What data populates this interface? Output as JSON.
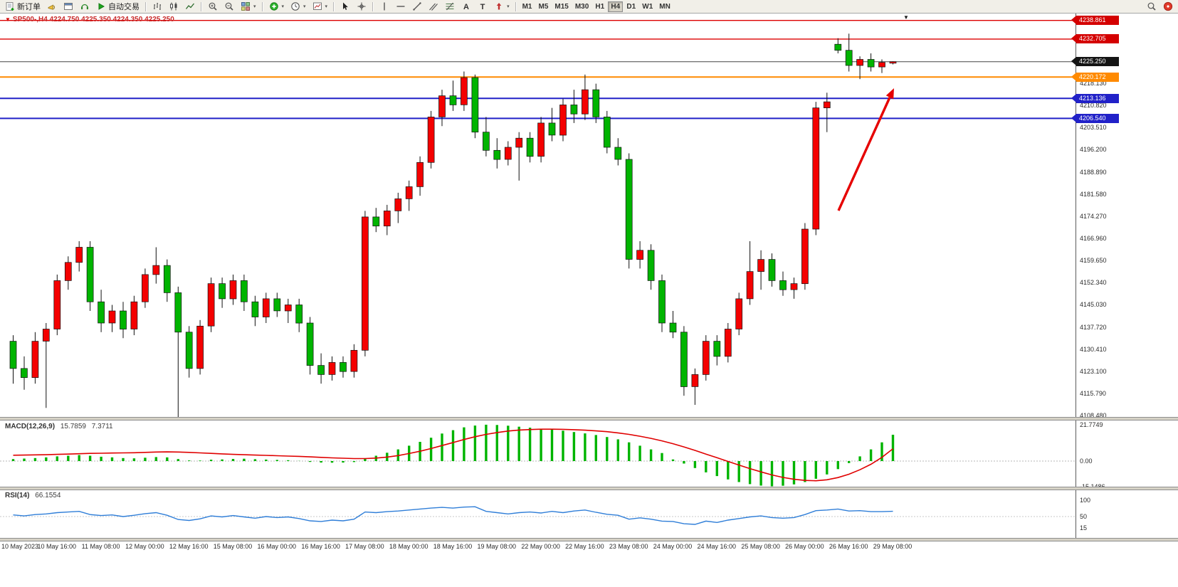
{
  "toolbar": {
    "new_order": "新订单",
    "autotrading": "自动交易",
    "timeframes": [
      "M1",
      "M5",
      "M15",
      "M30",
      "H1",
      "H4",
      "D1",
      "W1",
      "MN"
    ],
    "active_timeframe": "H4"
  },
  "chart": {
    "title": "SP500-,H4  4224.750 4225.350 4224.350 4225.250",
    "symbol": "SP500-",
    "timeframe": "H4",
    "open": "4224.750",
    "high": "4225.350",
    "low": "4224.350",
    "close": "4225.250"
  },
  "price_lines": [
    {
      "text": "4238.861",
      "price": 4238.861,
      "color": "#dd0000",
      "label_bg": "#d40000",
      "width": 1.4
    },
    {
      "text": "4232.705",
      "price": 4232.705,
      "color": "#dd0000",
      "label_bg": "#d40000",
      "width": 1.4
    },
    {
      "text": "4225.250",
      "price": 4225.25,
      "color": "#454545",
      "label_bg": "#141414",
      "width": 1
    },
    {
      "text": "4220.172",
      "price": 4220.172,
      "color": "#ff8a00",
      "label_bg": "#ff8a00",
      "width": 2
    },
    {
      "text": "4213.136",
      "price": 4213.136,
      "color": "#2121c8",
      "label_bg": "#2121c8",
      "width": 2
    },
    {
      "text": "4206.540",
      "price": 4206.54,
      "color": "#2121c8",
      "label_bg": "#2121c8",
      "width": 2
    }
  ],
  "price_axis_ticks": [
    "4218.130",
    "4210.820",
    "4203.510",
    "4196.200",
    "4188.890",
    "4181.580",
    "4174.270",
    "4166.960",
    "4159.650",
    "4152.340",
    "4145.030",
    "4137.720",
    "4130.410",
    "4123.100",
    "4115.790",
    "4108.480"
  ],
  "macd": {
    "label": "MACD(12,26,9)",
    "main_value": "15.7859",
    "signal_value": "7.3711",
    "scale_max": "21.7749",
    "scale_zero": "0.00",
    "scale_min": "-15.1486"
  },
  "rsi": {
    "label": "RSI(14)",
    "value": "66.1554",
    "scale": [
      "100",
      "50",
      "15"
    ]
  },
  "time_axis": [
    "10 May 2023",
    "10 May 16:00",
    "11 May 08:00",
    "12 May 00:00",
    "12 May 16:00",
    "15 May 08:00",
    "16 May 00:00",
    "16 May 16:00",
    "17 May 08:00",
    "18 May 00:00",
    "18 May 16:00",
    "19 May 08:00",
    "22 May 00:00",
    "22 May 16:00",
    "23 May 08:00",
    "24 May 00:00",
    "24 May 16:00",
    "25 May 08:00",
    "26 May 00:00",
    "26 May 16:00",
    "29 May 08:00"
  ],
  "chart_data": {
    "type": "candlestick",
    "symbol": "SP500-",
    "timeframe": "H4",
    "bull_color": "#f40000",
    "bear_color": "#00b400",
    "note": "red candles = bullish, green candles = bearish (CN convention); OHLC per bar",
    "candles_ohlc": [
      [
        4133,
        4135,
        4119,
        4124
      ],
      [
        4124,
        4128,
        4117,
        4121
      ],
      [
        4121,
        4136,
        4119,
        4133
      ],
      [
        4133,
        4139,
        4111,
        4137
      ],
      [
        4137,
        4155,
        4135,
        4153
      ],
      [
        4153,
        4161,
        4150,
        4159
      ],
      [
        4159,
        4166,
        4156,
        4164
      ],
      [
        4164,
        4166,
        4143,
        4146
      ],
      [
        4146,
        4150,
        4136,
        4139
      ],
      [
        4139,
        4145,
        4136,
        4143
      ],
      [
        4143,
        4146,
        4134,
        4137
      ],
      [
        4137,
        4148,
        4135,
        4146
      ],
      [
        4146,
        4157,
        4144,
        4155
      ],
      [
        4155,
        4164,
        4152,
        4158
      ],
      [
        4158,
        4160,
        4146,
        4149
      ],
      [
        4149,
        4151,
        4108,
        4136
      ],
      [
        4136,
        4138,
        4121,
        4124
      ],
      [
        4124,
        4140,
        4122,
        4138
      ],
      [
        4138,
        4154,
        4136,
        4152
      ],
      [
        4152,
        4154,
        4144,
        4147
      ],
      [
        4147,
        4155,
        4145,
        4153
      ],
      [
        4153,
        4155,
        4143,
        4146
      ],
      [
        4146,
        4148,
        4138,
        4141
      ],
      [
        4141,
        4149,
        4139,
        4147
      ],
      [
        4147,
        4149,
        4141,
        4143
      ],
      [
        4143,
        4147,
        4139,
        4145
      ],
      [
        4145,
        4147,
        4136,
        4139
      ],
      [
        4139,
        4141,
        4122,
        4125
      ],
      [
        4125,
        4129,
        4119,
        4122
      ],
      [
        4122,
        4128,
        4120,
        4126
      ],
      [
        4126,
        4128,
        4121,
        4123
      ],
      [
        4123,
        4132,
        4121,
        4130
      ],
      [
        4130,
        4176,
        4128,
        4174
      ],
      [
        4174,
        4177,
        4169,
        4171
      ],
      [
        4171,
        4178,
        4168,
        4176
      ],
      [
        4176,
        4182,
        4172,
        4180
      ],
      [
        4180,
        4186,
        4176,
        4184
      ],
      [
        4184,
        4194,
        4181,
        4192
      ],
      [
        4192,
        4209,
        4190,
        4207
      ],
      [
        4207,
        4216,
        4204,
        4214
      ],
      [
        4214,
        4219,
        4209,
        4211
      ],
      [
        4211,
        4222,
        4209,
        4220
      ],
      [
        4220,
        4221,
        4200,
        4202
      ],
      [
        4202,
        4207,
        4194,
        4196
      ],
      [
        4196,
        4200,
        4190,
        4193
      ],
      [
        4193,
        4199,
        4191,
        4197
      ],
      [
        4197,
        4202,
        4186,
        4200
      ],
      [
        4200,
        4202,
        4192,
        4194
      ],
      [
        4194,
        4207,
        4192,
        4205
      ],
      [
        4205,
        4210,
        4199,
        4201
      ],
      [
        4201,
        4213,
        4199,
        4211
      ],
      [
        4211,
        4216,
        4205,
        4208
      ],
      [
        4208,
        4221,
        4206,
        4216
      ],
      [
        4216,
        4218,
        4205,
        4207
      ],
      [
        4207,
        4209,
        4195,
        4197
      ],
      [
        4197,
        4200,
        4191,
        4193
      ],
      [
        4193,
        4195,
        4157,
        4160
      ],
      [
        4160,
        4166,
        4157,
        4163
      ],
      [
        4163,
        4165,
        4150,
        4153
      ],
      [
        4153,
        4155,
        4136,
        4139
      ],
      [
        4139,
        4143,
        4134,
        4136
      ],
      [
        4136,
        4138,
        4115,
        4118
      ],
      [
        4118,
        4124,
        4112,
        4122
      ],
      [
        4122,
        4135,
        4120,
        4133
      ],
      [
        4133,
        4135,
        4125,
        4128
      ],
      [
        4128,
        4139,
        4126,
        4137
      ],
      [
        4137,
        4149,
        4135,
        4147
      ],
      [
        4147,
        4166,
        4145,
        4156
      ],
      [
        4156,
        4163,
        4150,
        4160
      ],
      [
        4160,
        4162,
        4151,
        4153
      ],
      [
        4153,
        4156,
        4148,
        4150
      ],
      [
        4150,
        4154,
        4147,
        4152
      ],
      [
        4152,
        4172,
        4150,
        4170
      ],
      [
        4170,
        4212,
        4168,
        4210
      ],
      [
        4210,
        4215,
        4202,
        4212
      ],
      [
        4231,
        4233,
        4228,
        4229
      ],
      [
        4229,
        4234.5,
        4222,
        4224
      ],
      [
        4224,
        4227,
        4219.5,
        4226
      ],
      [
        4226,
        4228,
        4222,
        4223.5
      ],
      [
        4223.5,
        4226,
        4221.5,
        4225
      ],
      [
        4224.75,
        4225.35,
        4224.35,
        4225.25
      ]
    ],
    "macd_main": [
      1.2,
      1.5,
      1.8,
      2.2,
      2.8,
      3.2,
      3.6,
      3.2,
      2.6,
      2.2,
      1.8,
      1.6,
      2.0,
      2.4,
      2.2,
      1.2,
      0.4,
      0.3,
      0.8,
      1.0,
      1.3,
      1.4,
      1.1,
      0.9,
      0.7,
      0.5,
      0.1,
      -0.5,
      -0.9,
      -1.0,
      -0.9,
      -0.6,
      1.5,
      3.2,
      5.0,
      7.0,
      9.2,
      11.5,
      14.0,
      16.5,
      18.5,
      20.2,
      21.3,
      21.77,
      21.6,
      21.2,
      20.6,
      20.0,
      19.4,
      18.8,
      18.2,
      17.4,
      16.6,
      15.6,
      14.4,
      13.0,
      11.2,
      9.2,
      7.0,
      4.8,
      1.0,
      -1.5,
      -4.2,
      -6.8,
      -9.0,
      -11.0,
      -12.6,
      -13.8,
      -14.7,
      -15.15,
      -14.8,
      -14.0,
      -12.6,
      -10.6,
      -8.0,
      -4.8,
      -1.2,
      2.8,
      7.0,
      11.2,
      15.7859
    ],
    "macd_signal": [
      3.5,
      3.6,
      3.7,
      3.8,
      4.0,
      4.2,
      4.4,
      4.6,
      4.7,
      4.8,
      4.9,
      5.0,
      5.2,
      5.4,
      5.5,
      5.4,
      5.2,
      4.9,
      4.6,
      4.3,
      4.0,
      3.8,
      3.6,
      3.4,
      3.2,
      3.0,
      2.8,
      2.5,
      2.2,
      1.9,
      1.7,
      1.5,
      1.5,
      1.8,
      2.4,
      3.3,
      4.5,
      5.9,
      7.5,
      9.3,
      11.1,
      12.9,
      14.6,
      16.0,
      17.1,
      18.0,
      18.6,
      18.9,
      19.1,
      19.1,
      19.0,
      18.8,
      18.5,
      18.1,
      17.6,
      16.9,
      16.0,
      14.9,
      13.6,
      12.1,
      10.4,
      8.5,
      6.4,
      4.2,
      2.0,
      -0.2,
      -2.4,
      -4.5,
      -6.5,
      -8.3,
      -9.8,
      -10.9,
      -11.6,
      -11.8,
      -11.2,
      -9.9,
      -7.9,
      -5.2,
      -1.9,
      2.2,
      7.37
    ],
    "rsi": [
      55,
      52,
      56,
      58,
      62,
      64,
      66,
      56,
      53,
      55,
      50,
      54,
      59,
      62,
      54,
      41,
      38,
      43,
      52,
      49,
      53,
      49,
      45,
      50,
      47,
      49,
      44,
      37,
      35,
      39,
      37,
      42,
      64,
      62,
      65,
      67,
      70,
      73,
      76,
      78,
      76,
      79,
      80,
      66,
      62,
      58,
      62,
      64,
      61,
      66,
      62,
      67,
      70,
      63,
      57,
      54,
      42,
      46,
      42,
      36,
      35,
      28,
      26,
      36,
      32,
      39,
      44,
      49,
      52,
      47,
      45,
      47,
      56,
      68,
      70,
      73,
      67,
      68,
      65,
      65,
      66.1554
    ],
    "annotations": [
      {
        "type": "arrow",
        "color": "#e60000",
        "from": [
          1178,
          296
        ],
        "to": [
          1256,
          124
        ],
        "meaning": "red up-arrow pointing at breakout toward resistance"
      }
    ]
  }
}
